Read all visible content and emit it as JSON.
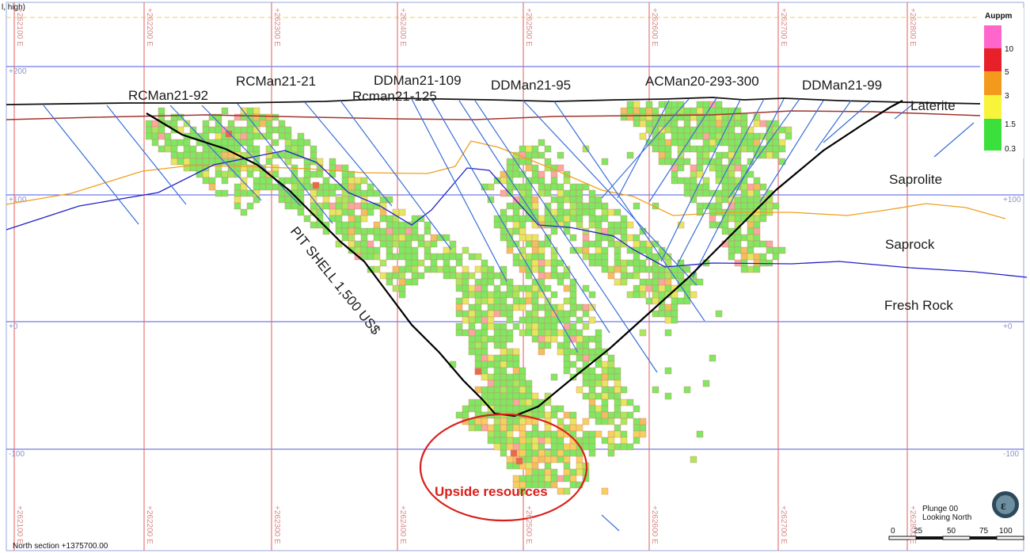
{
  "grid": {
    "easting_labels": [
      "+262100 E",
      "+262200 E",
      "+262300 E",
      "+262400 E",
      "+262500 E",
      "+262600 E",
      "+262700 E",
      "+262800 E"
    ],
    "rl_labels": [
      "+200",
      "+100",
      "+0",
      "-100"
    ],
    "rl_labels_right": [
      "",
      "+100",
      "+0",
      "-100"
    ]
  },
  "drillholes": [
    "RCMan21-92",
    "RCMan21-21",
    "DDMan21-109",
    "Rcman21-125",
    "DDMan21-95",
    "ACMan20-293-300",
    "DDMan21-99"
  ],
  "layers": {
    "laterite": "Laterite",
    "saprolite": "Saprolite",
    "saprock": "Saprock",
    "fresh_rock": "Fresh Rock"
  },
  "pit_shell_label": "PIT SHELL 1,500 US$",
  "upside_label": "Upside resources",
  "legend": {
    "title": "Auppm",
    "items": [
      {
        "label": "10",
        "color": "#ff66cc"
      },
      {
        "label": "5",
        "color": "#e8202a"
      },
      {
        "label": "3",
        "color": "#f39a1c"
      },
      {
        "label": "1.5",
        "color": "#f8f43c"
      },
      {
        "label": "0.3",
        "color": "#3ce03c"
      }
    ]
  },
  "orientation": {
    "plunge": "Plunge 00",
    "looking": "Looking North"
  },
  "scale_bar": [
    "0",
    "25",
    "50",
    "75",
    "100"
  ],
  "section_label": "North section +1375700.00",
  "corner_text": "l, high)",
  "colors": {
    "grid_easting": "#e56a6a",
    "grid_rl": "#4b5ae0",
    "topography": "#111111",
    "laterite_base": "#a0342e",
    "saprolite_base": "#f0a020",
    "saprock_base": "#2020c8",
    "drillhole": "#3a6fd8",
    "pit_shell": "#000000",
    "upside_ellipse": "#d8201a",
    "block_outline": "#e07a7a"
  }
}
